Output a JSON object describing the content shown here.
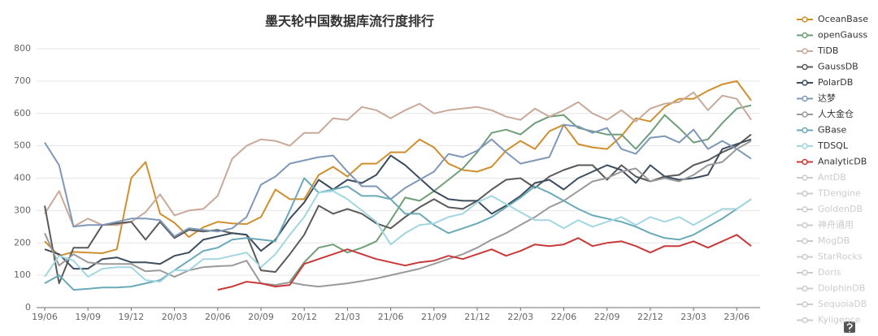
{
  "chart_data": {
    "type": "line",
    "title": "墨天轮中国数据库流行度排行",
    "categories": [
      "19/06",
      null,
      null,
      "19/09",
      null,
      null,
      "19/12",
      null,
      null,
      "20/03",
      null,
      null,
      "20/06",
      null,
      null,
      "20/09",
      null,
      null,
      "20/12",
      null,
      null,
      "21/03",
      null,
      null,
      "21/06",
      null,
      null,
      "21/09",
      null,
      null,
      "21/12",
      null,
      null,
      "22/03",
      null,
      null,
      "22/06",
      null,
      null,
      "22/09",
      null,
      null,
      "22/12",
      null,
      null,
      "23/03",
      null,
      null,
      "23/06",
      null
    ],
    "ylim": [
      0,
      800
    ],
    "yticks": [
      0,
      100,
      200,
      300,
      400,
      500,
      600,
      700,
      800
    ],
    "grid": true,
    "series": [
      {
        "name": "OceanBase",
        "color": "#d08f2e",
        "values": [
          205,
          160,
          172,
          170,
          168,
          180,
          400,
          450,
          290,
          262,
          218,
          248,
          265,
          260,
          258,
          280,
          365,
          335,
          335,
          410,
          435,
          405,
          445,
          445,
          480,
          480,
          520,
          495,
          445,
          425,
          420,
          435,
          485,
          515,
          490,
          545,
          565,
          505,
          495,
          490,
          530,
          585,
          575,
          620,
          645,
          645,
          670,
          690,
          700,
          640
        ]
      },
      {
        "name": "openGauss",
        "color": "#6f9e78",
        "values": [
          null,
          null,
          null,
          null,
          null,
          null,
          null,
          null,
          null,
          null,
          null,
          null,
          null,
          null,
          null,
          null,
          null,
          80,
          140,
          185,
          195,
          170,
          185,
          205,
          270,
          340,
          330,
          360,
          395,
          430,
          480,
          540,
          550,
          535,
          570,
          590,
          595,
          555,
          545,
          535,
          535,
          490,
          540,
          595,
          555,
          510,
          520,
          570,
          615,
          625
        ]
      },
      {
        "name": "TiDB",
        "color": "#c9a99a",
        "values": [
          290,
          360,
          250,
          275,
          255,
          255,
          265,
          295,
          350,
          285,
          300,
          305,
          345,
          460,
          500,
          520,
          515,
          500,
          540,
          540,
          585,
          580,
          620,
          610,
          585,
          610,
          630,
          600,
          610,
          615,
          620,
          610,
          590,
          580,
          615,
          590,
          610,
          635,
          600,
          580,
          610,
          575,
          615,
          630,
          635,
          665,
          610,
          655,
          645,
          580
        ]
      },
      {
        "name": "GaussDB",
        "color": "#5a5a5a",
        "values": [
          315,
          75,
          185,
          185,
          255,
          260,
          265,
          210,
          265,
          215,
          240,
          235,
          240,
          230,
          225,
          115,
          110,
          165,
          225,
          315,
          290,
          305,
          290,
          260,
          245,
          280,
          310,
          335,
          310,
          305,
          330,
          365,
          395,
          400,
          370,
          405,
          425,
          440,
          440,
          395,
          440,
          405,
          390,
          405,
          410,
          440,
          455,
          480,
          500,
          535
        ]
      },
      {
        "name": "PolarDB",
        "color": "#3d4d5e",
        "values": [
          180,
          165,
          120,
          120,
          150,
          155,
          140,
          140,
          135,
          160,
          170,
          210,
          220,
          230,
          225,
          175,
          210,
          275,
          325,
          395,
          365,
          395,
          385,
          410,
          470,
          440,
          400,
          360,
          335,
          330,
          330,
          290,
          315,
          345,
          385,
          395,
          365,
          400,
          420,
          440,
          425,
          385,
          440,
          405,
          395,
          400,
          410,
          490,
          505,
          520
        ]
      },
      {
        "name": "达梦",
        "color": "#7f98b8",
        "values": [
          510,
          440,
          250,
          255,
          255,
          265,
          275,
          275,
          270,
          220,
          245,
          240,
          235,
          245,
          280,
          380,
          405,
          445,
          455,
          465,
          470,
          420,
          375,
          375,
          335,
          370,
          395,
          420,
          475,
          465,
          485,
          520,
          480,
          445,
          455,
          465,
          565,
          560,
          540,
          555,
          490,
          475,
          525,
          530,
          510,
          550,
          490,
          515,
          490,
          460
        ]
      },
      {
        "name": "人大金仓",
        "color": "#9a9a9a",
        "values": [
          230,
          130,
          165,
          140,
          135,
          135,
          135,
          112,
          115,
          95,
          115,
          125,
          128,
          130,
          145,
          75,
          70,
          78,
          70,
          65,
          70,
          75,
          82,
          90,
          100,
          110,
          120,
          135,
          150,
          165,
          185,
          210,
          230,
          255,
          280,
          310,
          330,
          360,
          390,
          400,
          420,
          430,
          390,
          400,
          390,
          410,
          440,
          450,
          490,
          515
        ]
      },
      {
        "name": "GBase",
        "color": "#6aaab8",
        "values": [
          75,
          100,
          55,
          58,
          62,
          62,
          65,
          75,
          85,
          115,
          145,
          175,
          185,
          210,
          215,
          210,
          205,
          300,
          400,
          355,
          365,
          375,
          345,
          345,
          335,
          290,
          290,
          255,
          230,
          245,
          260,
          280,
          310,
          340,
          375,
          355,
          330,
          305,
          285,
          275,
          265,
          250,
          230,
          215,
          210,
          225,
          250,
          275,
          305,
          335
        ]
      },
      {
        "name": "TDSQL",
        "color": "#a3d6e0",
        "values": [
          95,
          160,
          145,
          95,
          120,
          125,
          125,
          85,
          80,
          115,
          115,
          150,
          150,
          160,
          170,
          125,
          165,
          225,
          280,
          355,
          360,
          335,
          300,
          265,
          195,
          230,
          255,
          260,
          280,
          290,
          325,
          345,
          320,
          295,
          270,
          270,
          245,
          270,
          250,
          265,
          280,
          255,
          280,
          265,
          280,
          255,
          280,
          305,
          305,
          335
        ]
      },
      {
        "name": "AnalyticDB",
        "color": "#c8393a",
        "values": [
          null,
          null,
          null,
          null,
          null,
          null,
          null,
          null,
          null,
          null,
          null,
          null,
          55,
          65,
          80,
          75,
          65,
          70,
          135,
          150,
          165,
          180,
          165,
          150,
          140,
          130,
          140,
          145,
          160,
          150,
          165,
          180,
          160,
          175,
          195,
          190,
          195,
          215,
          190,
          200,
          205,
          190,
          170,
          190,
          190,
          205,
          185,
          205,
          225,
          190
        ]
      }
    ],
    "hidden_series": [
      "AntDB",
      "TDengine",
      "GoldenDB",
      "神舟通用",
      "MogDB",
      "StarRocks",
      "Doris",
      "DolphinDB",
      "SequoiaDB",
      "Kyligence"
    ],
    "hidden_color": "#cccccc"
  }
}
